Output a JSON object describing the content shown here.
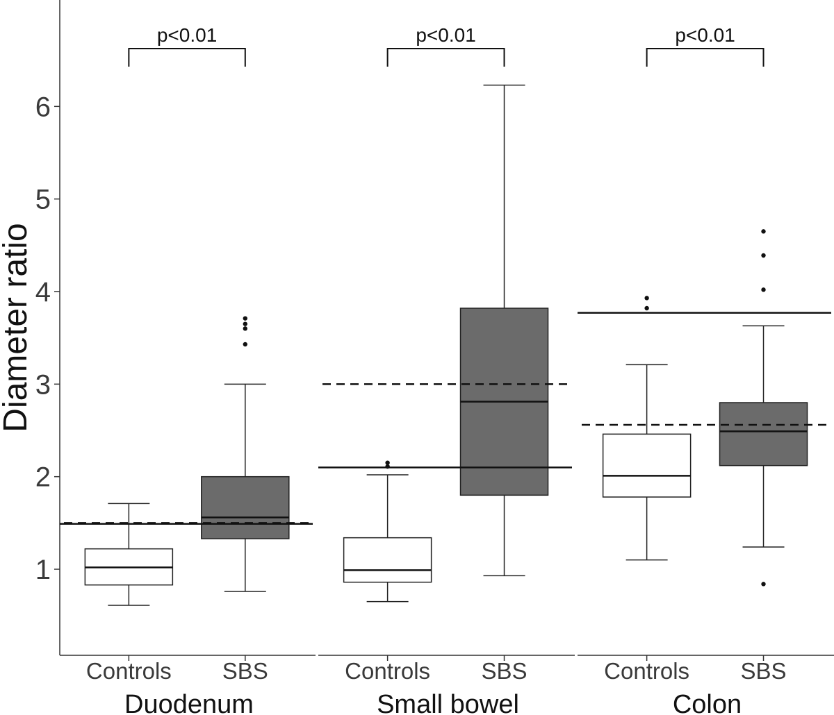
{
  "chart_data": {
    "type": "box",
    "ylabel": "Diameter ratio",
    "ylim": [
      0.07,
      7.15
    ],
    "yticks": [
      1,
      2,
      3,
      4,
      5,
      6
    ],
    "categories": [
      "Controls",
      "SBS"
    ],
    "panels": [
      {
        "name": "Duodenum",
        "p_value": "p<0.01",
        "reference_solid": 1.49,
        "reference_dashed": 1.5,
        "groups": [
          {
            "name": "Controls",
            "fill": "#ffffff",
            "whisker_low": 0.61,
            "q1": 0.83,
            "median": 1.02,
            "q3": 1.22,
            "whisker_high": 1.71,
            "outliers": []
          },
          {
            "name": "SBS",
            "fill": "#6b6b6b",
            "whisker_low": 0.76,
            "q1": 1.33,
            "median": 1.56,
            "q3": 2.0,
            "whisker_high": 3.0,
            "outliers": [
              3.43,
              3.6,
              3.65,
              3.71
            ]
          }
        ]
      },
      {
        "name": "Small bowel",
        "p_value": "p<0.01",
        "reference_solid": 2.1,
        "reference_dashed": 3.0,
        "groups": [
          {
            "name": "Controls",
            "fill": "#ffffff",
            "whisker_low": 0.65,
            "q1": 0.86,
            "median": 0.99,
            "q3": 1.34,
            "whisker_high": 2.02,
            "outliers": [
              2.11,
              2.15
            ]
          },
          {
            "name": "SBS",
            "fill": "#6b6b6b",
            "whisker_low": 0.93,
            "q1": 1.8,
            "median": 2.81,
            "q3": 3.82,
            "whisker_high": 6.23,
            "outliers": []
          }
        ]
      },
      {
        "name": "Colon",
        "p_value": "p<0.01",
        "reference_solid": 3.77,
        "reference_dashed": 2.56,
        "groups": [
          {
            "name": "Controls",
            "fill": "#ffffff",
            "whisker_low": 1.1,
            "q1": 1.78,
            "median": 2.01,
            "q3": 2.46,
            "whisker_high": 3.21,
            "outliers": [
              3.82,
              3.93
            ]
          },
          {
            "name": "SBS",
            "fill": "#6b6b6b",
            "whisker_low": 1.24,
            "q1": 2.12,
            "median": 2.49,
            "q3": 2.8,
            "whisker_high": 3.63,
            "outliers": [
              0.84,
              4.02,
              4.39,
              4.65
            ]
          }
        ]
      }
    ]
  }
}
